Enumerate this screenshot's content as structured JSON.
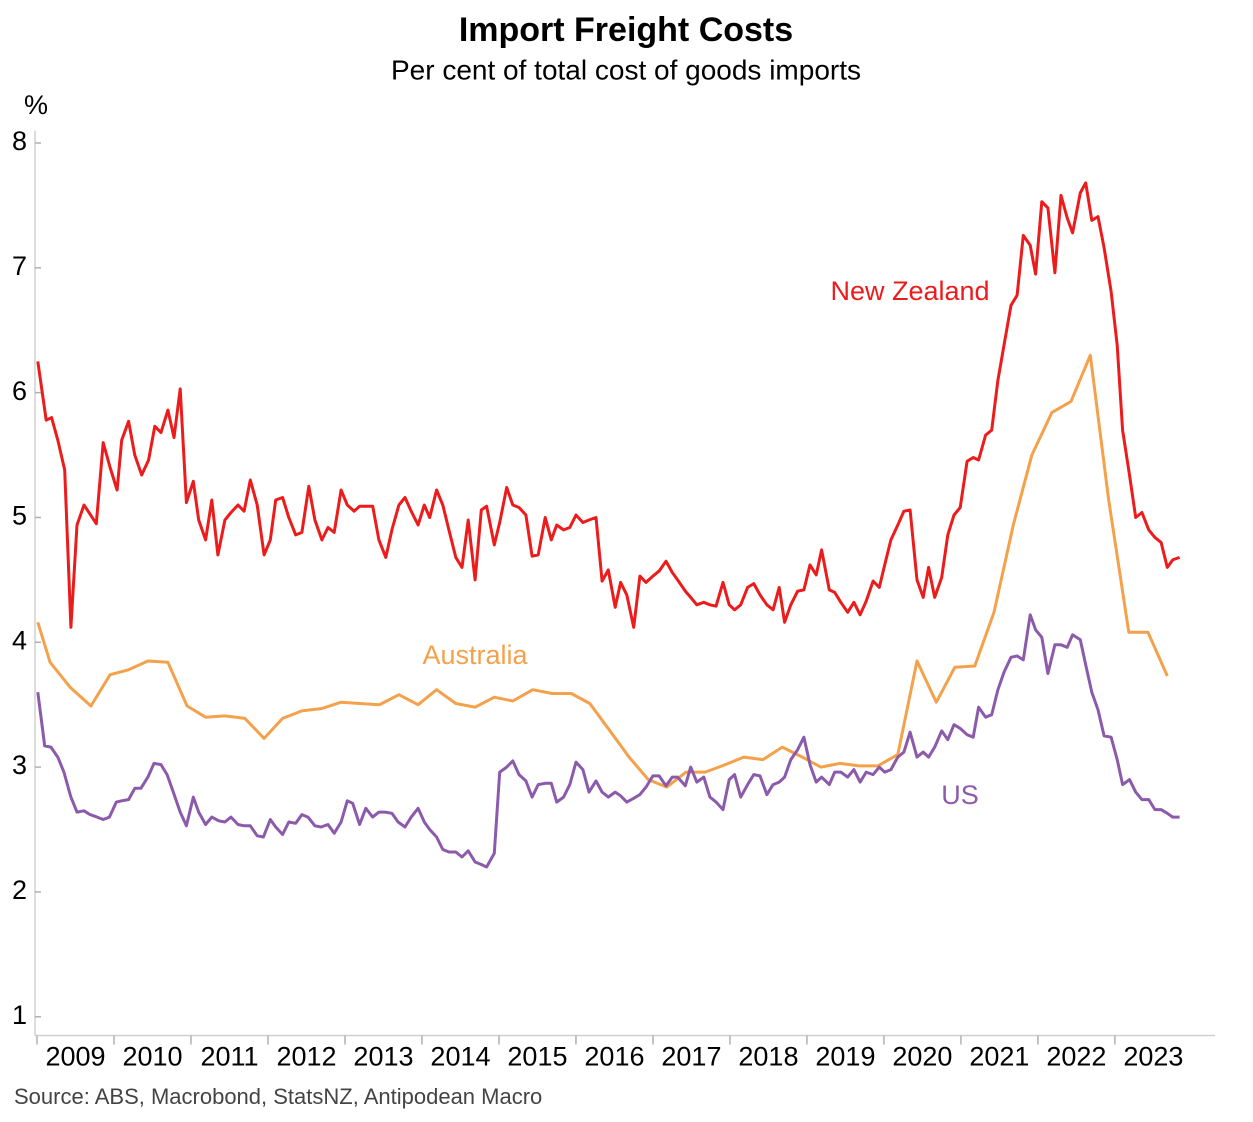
{
  "chart_data": {
    "type": "line",
    "title": "Import Freight Costs",
    "subtitle": "Per cent of total cost of goods imports",
    "y_label": "%",
    "source": "Source: ABS, Macrobond, StatsNZ, Antipodean Macro",
    "xlim": [
      2009,
      2024.3
    ],
    "xticks": [
      {
        "value": 2009,
        "label": "2009"
      },
      {
        "value": 2010,
        "label": "2010"
      },
      {
        "value": 2011,
        "label": "2011"
      },
      {
        "value": 2012,
        "label": "2012"
      },
      {
        "value": 2013,
        "label": "2013"
      },
      {
        "value": 2014,
        "label": "2014"
      },
      {
        "value": 2015,
        "label": "2015"
      },
      {
        "value": 2016,
        "label": "2016"
      },
      {
        "value": 2017,
        "label": "2017"
      },
      {
        "value": 2018,
        "label": "2018"
      },
      {
        "value": 2019,
        "label": "2019"
      },
      {
        "value": 2020,
        "label": "2020"
      },
      {
        "value": 2021,
        "label": "2021"
      },
      {
        "value": 2022,
        "label": "2022"
      },
      {
        "value": 2023,
        "label": "2023"
      }
    ],
    "ylim": [
      0.85,
      8.1
    ],
    "yticks": [
      1,
      2,
      3,
      4,
      5,
      6,
      7,
      8
    ],
    "grid": false,
    "series": [
      {
        "name": "New Zealand",
        "color": "#ec1c1c",
        "x": [
          2009.01,
          2009.12,
          2009.19,
          2009.27,
          2009.36,
          2009.44,
          2009.52,
          2009.61,
          2009.77,
          2009.86,
          2009.95,
          2010.04,
          2010.1,
          2010.19,
          2010.27,
          2010.36,
          2010.45,
          2010.53,
          2010.61,
          2010.7,
          2010.78,
          2010.86,
          2010.94,
          2011.03,
          2011.1,
          2011.19,
          2011.27,
          2011.35,
          2011.44,
          2011.52,
          2011.61,
          2011.69,
          2011.77,
          2011.86,
          2011.95,
          2012.03,
          2012.1,
          2012.19,
          2012.27,
          2012.36,
          2012.44,
          2012.53,
          2012.61,
          2012.7,
          2012.78,
          2012.86,
          2012.95,
          2013.03,
          2013.12,
          2013.19,
          2013.36,
          2013.44,
          2013.53,
          2013.61,
          2013.7,
          2013.78,
          2013.86,
          2013.95,
          2014.03,
          2014.1,
          2014.19,
          2014.27,
          2014.35,
          2014.44,
          2014.52,
          2014.6,
          2014.69,
          2014.77,
          2014.84,
          2014.94,
          2015.01,
          2015.1,
          2015.18,
          2015.26,
          2015.35,
          2015.43,
          2015.51,
          2015.6,
          2015.68,
          2015.75,
          2015.84,
          2015.92,
          2016.0,
          2016.09,
          2016.17,
          2016.26,
          2016.34,
          2016.42,
          2016.51,
          2016.58,
          2016.66,
          2016.75,
          2016.83,
          2016.91,
          2017.0,
          2017.08,
          2017.17,
          2017.25,
          2017.32,
          2017.42,
          2017.49,
          2017.57,
          2017.66,
          2017.74,
          2017.82,
          2017.91,
          2017.99,
          2018.06,
          2018.14,
          2018.23,
          2018.31,
          2018.39,
          2018.48,
          2018.56,
          2018.64,
          2018.71,
          2018.79,
          2018.88,
          2018.96,
          2019.04,
          2019.12,
          2019.19,
          2019.29,
          2019.36,
          2019.44,
          2019.53,
          2019.61,
          2019.69,
          2019.77,
          2019.86,
          2019.94,
          2020.01,
          2020.09,
          2020.18,
          2020.26,
          2020.34,
          2020.43,
          2020.51,
          2020.58,
          2020.66,
          2020.75,
          2020.83,
          2020.91,
          2020.99,
          2021.08,
          2021.16,
          2021.23,
          2021.32,
          2021.4,
          2021.48,
          2021.56,
          2021.65,
          2021.73,
          2021.81,
          2021.9,
          2021.97,
          2022.05,
          2022.13,
          2022.22,
          2022.3,
          2022.38,
          2022.45,
          2022.55,
          2022.62,
          2022.7,
          2022.78,
          2022.86,
          2022.95,
          2023.03,
          2023.1,
          2023.19,
          2023.27,
          2023.35,
          2023.44,
          2023.52,
          2023.6,
          2023.68,
          2023.75,
          2023.84
        ],
        "values": [
          6.25,
          5.78,
          5.8,
          5.62,
          5.38,
          4.12,
          4.94,
          5.1,
          4.95,
          5.6,
          5.4,
          5.22,
          5.62,
          5.77,
          5.5,
          5.34,
          5.46,
          5.73,
          5.68,
          5.86,
          5.64,
          6.03,
          5.12,
          5.29,
          4.98,
          4.82,
          5.14,
          4.7,
          4.98,
          5.04,
          5.1,
          5.05,
          5.3,
          5.1,
          4.7,
          4.82,
          5.14,
          5.16,
          5.0,
          4.86,
          4.88,
          5.25,
          4.98,
          4.82,
          4.92,
          4.88,
          5.22,
          5.1,
          5.05,
          5.09,
          5.09,
          4.82,
          4.68,
          4.9,
          5.1,
          5.16,
          5.05,
          4.94,
          5.1,
          5.0,
          5.22,
          5.1,
          4.9,
          4.68,
          4.6,
          4.98,
          4.5,
          5.06,
          5.09,
          4.78,
          4.96,
          5.24,
          5.1,
          5.08,
          5.02,
          4.69,
          4.7,
          5.0,
          4.82,
          4.94,
          4.9,
          4.92,
          5.02,
          4.96,
          4.98,
          5.0,
          4.49,
          4.58,
          4.28,
          4.48,
          4.38,
          4.12,
          4.53,
          4.48,
          4.53,
          4.57,
          4.65,
          4.56,
          4.5,
          4.41,
          4.36,
          4.3,
          4.32,
          4.3,
          4.29,
          4.48,
          4.3,
          4.26,
          4.3,
          4.44,
          4.47,
          4.38,
          4.3,
          4.26,
          4.44,
          4.16,
          4.3,
          4.41,
          4.42,
          4.62,
          4.54,
          4.74,
          4.42,
          4.4,
          4.32,
          4.24,
          4.32,
          4.22,
          4.33,
          4.49,
          4.44,
          4.62,
          4.82,
          4.94,
          5.05,
          5.06,
          4.5,
          4.36,
          4.6,
          4.36,
          4.52,
          4.86,
          5.02,
          5.08,
          5.45,
          5.48,
          5.46,
          5.66,
          5.7,
          6.1,
          6.38,
          6.7,
          6.78,
          7.26,
          7.18,
          6.95,
          7.53,
          7.48,
          6.96,
          7.58,
          7.4,
          7.28,
          7.6,
          7.68,
          7.38,
          7.41,
          7.16,
          6.81,
          6.38,
          5.7,
          5.34,
          5.0,
          5.04,
          4.9,
          4.84,
          4.8,
          4.6,
          4.66,
          4.68
        ]
      },
      {
        "name": "Australia",
        "color": "#f4a14c",
        "x": [
          2009.01,
          2009.17,
          2009.43,
          2009.7,
          2009.95,
          2010.19,
          2010.44,
          2010.7,
          2010.95,
          2011.19,
          2011.44,
          2011.7,
          2011.95,
          2012.19,
          2012.44,
          2012.7,
          2012.95,
          2013.19,
          2013.45,
          2013.7,
          2013.95,
          2014.19,
          2014.44,
          2014.69,
          2014.94,
          2015.18,
          2015.44,
          2015.69,
          2015.94,
          2016.18,
          2016.43,
          2016.69,
          2016.94,
          2017.18,
          2017.43,
          2017.68,
          2017.94,
          2018.18,
          2018.43,
          2018.68,
          2018.94,
          2019.18,
          2019.43,
          2019.68,
          2019.92,
          2020.18,
          2020.43,
          2020.68,
          2020.92,
          2021.18,
          2021.43,
          2021.68,
          2021.92,
          2022.18,
          2022.43,
          2022.68,
          2022.92,
          2023.18,
          2023.43,
          2023.68
        ],
        "values": [
          4.16,
          3.84,
          3.64,
          3.49,
          3.74,
          3.78,
          3.85,
          3.84,
          3.49,
          3.4,
          3.41,
          3.39,
          3.23,
          3.39,
          3.45,
          3.47,
          3.52,
          3.51,
          3.5,
          3.58,
          3.5,
          3.62,
          3.51,
          3.48,
          3.56,
          3.53,
          3.62,
          3.59,
          3.59,
          3.51,
          3.3,
          3.08,
          2.9,
          2.84,
          2.96,
          2.96,
          3.02,
          3.08,
          3.06,
          3.16,
          3.08,
          3.0,
          3.03,
          3.01,
          3.01,
          3.1,
          3.85,
          3.52,
          3.8,
          3.81,
          4.24,
          4.94,
          5.5,
          5.84,
          5.93,
          6.3,
          5.14,
          4.08,
          4.08,
          3.73
        ]
      },
      {
        "name": "US",
        "color": "#8c5aab",
        "x": [
          2009.01,
          2009.1,
          2009.18,
          2009.27,
          2009.35,
          2009.44,
          2009.52,
          2009.61,
          2009.69,
          2009.78,
          2009.86,
          2009.94,
          2010.03,
          2010.1,
          2010.19,
          2010.27,
          2010.35,
          2010.44,
          2010.52,
          2010.61,
          2010.69,
          2010.77,
          2010.86,
          2010.94,
          2011.03,
          2011.1,
          2011.19,
          2011.27,
          2011.36,
          2011.44,
          2011.52,
          2011.61,
          2011.69,
          2011.77,
          2011.86,
          2011.94,
          2012.03,
          2012.1,
          2012.19,
          2012.27,
          2012.36,
          2012.44,
          2012.52,
          2012.61,
          2012.69,
          2012.78,
          2012.86,
          2012.95,
          2013.03,
          2013.1,
          2013.19,
          2013.27,
          2013.36,
          2013.44,
          2013.52,
          2013.61,
          2013.69,
          2013.78,
          2013.86,
          2013.95,
          2014.03,
          2014.1,
          2014.19,
          2014.27,
          2014.35,
          2014.44,
          2014.52,
          2014.6,
          2014.69,
          2014.77,
          2014.84,
          2014.94,
          2015.01,
          2015.1,
          2015.18,
          2015.26,
          2015.35,
          2015.43,
          2015.51,
          2015.6,
          2015.68,
          2015.75,
          2015.84,
          2015.92,
          2016.0,
          2016.09,
          2016.17,
          2016.26,
          2016.34,
          2016.42,
          2016.51,
          2016.58,
          2016.66,
          2016.75,
          2016.83,
          2016.91,
          2017.0,
          2017.08,
          2017.17,
          2017.25,
          2017.32,
          2017.42,
          2017.49,
          2017.57,
          2017.66,
          2017.74,
          2017.82,
          2017.91,
          2017.99,
          2018.06,
          2018.14,
          2018.23,
          2018.31,
          2018.39,
          2018.48,
          2018.56,
          2018.64,
          2018.71,
          2018.79,
          2018.88,
          2018.96,
          2019.04,
          2019.12,
          2019.19,
          2019.29,
          2019.36,
          2019.44,
          2019.53,
          2019.61,
          2019.69,
          2019.77,
          2019.86,
          2019.94,
          2020.01,
          2020.09,
          2020.18,
          2020.26,
          2020.34,
          2020.43,
          2020.51,
          2020.58,
          2020.66,
          2020.75,
          2020.83,
          2020.91,
          2020.99,
          2021.08,
          2021.16,
          2021.23,
          2021.32,
          2021.4,
          2021.48,
          2021.56,
          2021.65,
          2021.73,
          2021.81,
          2021.9,
          2021.97,
          2022.05,
          2022.13,
          2022.22,
          2022.3,
          2022.38,
          2022.45,
          2022.55,
          2022.62,
          2022.7,
          2022.78,
          2022.86,
          2022.95,
          2023.03,
          2023.1,
          2023.19,
          2023.27,
          2023.35,
          2023.44,
          2023.52,
          2023.6,
          2023.68,
          2023.75,
          2023.84
        ],
        "values": [
          3.6,
          3.17,
          3.16,
          3.08,
          2.96,
          2.76,
          2.64,
          2.65,
          2.62,
          2.6,
          2.58,
          2.6,
          2.72,
          2.73,
          2.74,
          2.83,
          2.83,
          2.92,
          3.03,
          3.02,
          2.94,
          2.8,
          2.64,
          2.53,
          2.76,
          2.64,
          2.54,
          2.6,
          2.57,
          2.56,
          2.6,
          2.54,
          2.53,
          2.53,
          2.45,
          2.44,
          2.58,
          2.52,
          2.46,
          2.56,
          2.55,
          2.62,
          2.6,
          2.53,
          2.52,
          2.54,
          2.47,
          2.56,
          2.73,
          2.71,
          2.54,
          2.67,
          2.6,
          2.64,
          2.64,
          2.63,
          2.56,
          2.52,
          2.6,
          2.67,
          2.56,
          2.5,
          2.44,
          2.34,
          2.32,
          2.32,
          2.28,
          2.33,
          2.24,
          2.22,
          2.2,
          2.31,
          2.96,
          3.0,
          3.05,
          2.94,
          2.89,
          2.76,
          2.86,
          2.87,
          2.87,
          2.72,
          2.76,
          2.86,
          3.04,
          2.98,
          2.8,
          2.89,
          2.8,
          2.76,
          2.8,
          2.77,
          2.72,
          2.75,
          2.78,
          2.84,
          2.93,
          2.93,
          2.85,
          2.92,
          2.92,
          2.85,
          3.0,
          2.88,
          2.92,
          2.76,
          2.72,
          2.66,
          2.9,
          2.94,
          2.76,
          2.86,
          2.94,
          2.93,
          2.78,
          2.86,
          2.88,
          2.92,
          3.06,
          3.14,
          3.24,
          3.02,
          2.88,
          2.92,
          2.86,
          2.96,
          2.96,
          2.92,
          2.98,
          2.88,
          2.96,
          2.94,
          3.0,
          2.96,
          2.98,
          3.08,
          3.12,
          3.28,
          3.08,
          3.12,
          3.08,
          3.16,
          3.29,
          3.22,
          3.34,
          3.31,
          3.26,
          3.24,
          3.48,
          3.4,
          3.42,
          3.62,
          3.76,
          3.88,
          3.89,
          3.86,
          4.22,
          4.1,
          4.04,
          3.75,
          3.98,
          3.98,
          3.96,
          4.06,
          4.02,
          3.82,
          3.6,
          3.46,
          3.25,
          3.24,
          3.06,
          2.86,
          2.9,
          2.8,
          2.74,
          2.74,
          2.66,
          2.66,
          2.63,
          2.6,
          2.6
        ]
      }
    ]
  }
}
